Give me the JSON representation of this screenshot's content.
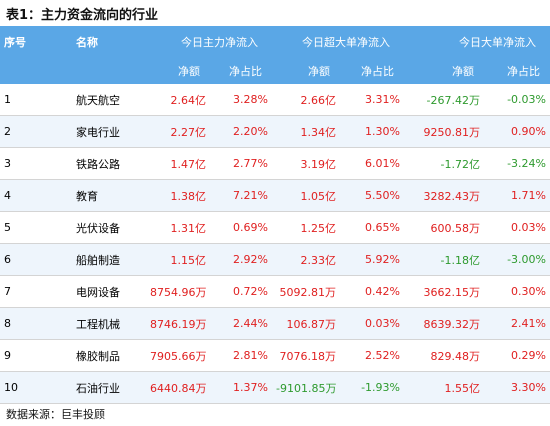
{
  "title": "表1：主力资金流向的行业",
  "header": {
    "col_index": "序号",
    "col_name": "名称",
    "group_main": "今日主力净流入",
    "group_super": "今日超大单净流入",
    "group_large": "今日大单净流入",
    "sub_amount": "净额",
    "sub_ratio": "净占比"
  },
  "rows": [
    {
      "idx": "1",
      "name": "航天航空",
      "main_amt": "2.64亿",
      "main_pct": "3.28%",
      "super_amt": "2.66亿",
      "super_pct": "3.31%",
      "large_amt": "-267.42万",
      "large_pct": "-0.03%"
    },
    {
      "idx": "2",
      "name": "家电行业",
      "main_amt": "2.27亿",
      "main_pct": "2.20%",
      "super_amt": "1.34亿",
      "super_pct": "1.30%",
      "large_amt": "9250.81万",
      "large_pct": "0.90%"
    },
    {
      "idx": "3",
      "name": "铁路公路",
      "main_amt": "1.47亿",
      "main_pct": "2.77%",
      "super_amt": "3.19亿",
      "super_pct": "6.01%",
      "large_amt": "-1.72亿",
      "large_pct": "-3.24%"
    },
    {
      "idx": "4",
      "name": "教育",
      "main_amt": "1.38亿",
      "main_pct": "7.21%",
      "super_amt": "1.05亿",
      "super_pct": "5.50%",
      "large_amt": "3282.43万",
      "large_pct": "1.71%"
    },
    {
      "idx": "5",
      "name": "光伏设备",
      "main_amt": "1.31亿",
      "main_pct": "0.69%",
      "super_amt": "1.25亿",
      "super_pct": "0.65%",
      "large_amt": "600.58万",
      "large_pct": "0.03%"
    },
    {
      "idx": "6",
      "name": "船舶制造",
      "main_amt": "1.15亿",
      "main_pct": "2.92%",
      "super_amt": "2.33亿",
      "super_pct": "5.92%",
      "large_amt": "-1.18亿",
      "large_pct": "-3.00%"
    },
    {
      "idx": "7",
      "name": "电网设备",
      "main_amt": "8754.96万",
      "main_pct": "0.72%",
      "super_amt": "5092.81万",
      "super_pct": "0.42%",
      "large_amt": "3662.15万",
      "large_pct": "0.30%"
    },
    {
      "idx": "8",
      "name": "工程机械",
      "main_amt": "8746.19万",
      "main_pct": "2.44%",
      "super_amt": "106.87万",
      "super_pct": "0.03%",
      "large_amt": "8639.32万",
      "large_pct": "2.41%"
    },
    {
      "idx": "9",
      "name": "橡胶制品",
      "main_amt": "7905.66万",
      "main_pct": "2.81%",
      "super_amt": "7076.18万",
      "super_pct": "2.52%",
      "large_amt": "829.48万",
      "large_pct": "0.29%"
    },
    {
      "idx": "10",
      "name": "石油行业",
      "main_amt": "6440.84万",
      "main_pct": "1.37%",
      "super_amt": "-9101.85万",
      "super_pct": "-1.93%",
      "large_amt": "1.55亿",
      "large_pct": "3.30%"
    }
  ],
  "source": "数据来源：巨丰投顾",
  "colors": {
    "header_bg": "#5aa7e6",
    "positive": "#e02020",
    "negative": "#2e9a2e",
    "stripe": "#eef5fc"
  }
}
